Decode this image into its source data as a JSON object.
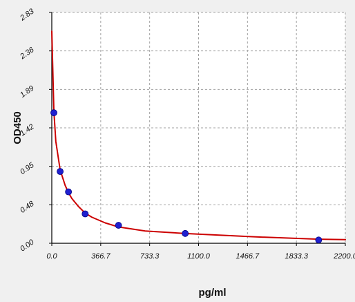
{
  "chart_data": {
    "type": "scatter",
    "title": "",
    "xlabel": "pg/ml",
    "ylabel": "OD450",
    "xlim": [
      0,
      2200
    ],
    "ylim": [
      0,
      2.83
    ],
    "x_ticks": [
      "0.0",
      "366.7",
      "733.3",
      "1100.0",
      "1466.7",
      "1833.3",
      "2200.0"
    ],
    "y_ticks": [
      "0.00",
      "0.48",
      "0.95",
      "1.42",
      "1.89",
      "2.36",
      "2.83"
    ],
    "grid": true,
    "series": [
      {
        "kind": "points",
        "color": "#2020d0",
        "x": [
          15.6,
          62.5,
          125,
          250,
          500,
          1000,
          2000
        ],
        "y": [
          1.6,
          0.88,
          0.63,
          0.36,
          0.22,
          0.12,
          0.04
        ]
      },
      {
        "kind": "fitted-curve",
        "color": "#cc0000",
        "x": [
          0,
          15.6,
          30,
          62.5,
          100,
          125,
          150,
          200,
          250,
          300,
          400,
          500,
          700,
          1000,
          1500,
          2000,
          2200
        ],
        "y": [
          2.6,
          1.62,
          1.25,
          0.9,
          0.71,
          0.62,
          0.55,
          0.45,
          0.37,
          0.32,
          0.25,
          0.2,
          0.15,
          0.12,
          0.08,
          0.05,
          0.045
        ]
      }
    ]
  },
  "colors": {
    "plot_background": "#ffffff",
    "page_background": "#f0f0f0",
    "grid": "#a0a0a0",
    "axis": "#000000"
  }
}
